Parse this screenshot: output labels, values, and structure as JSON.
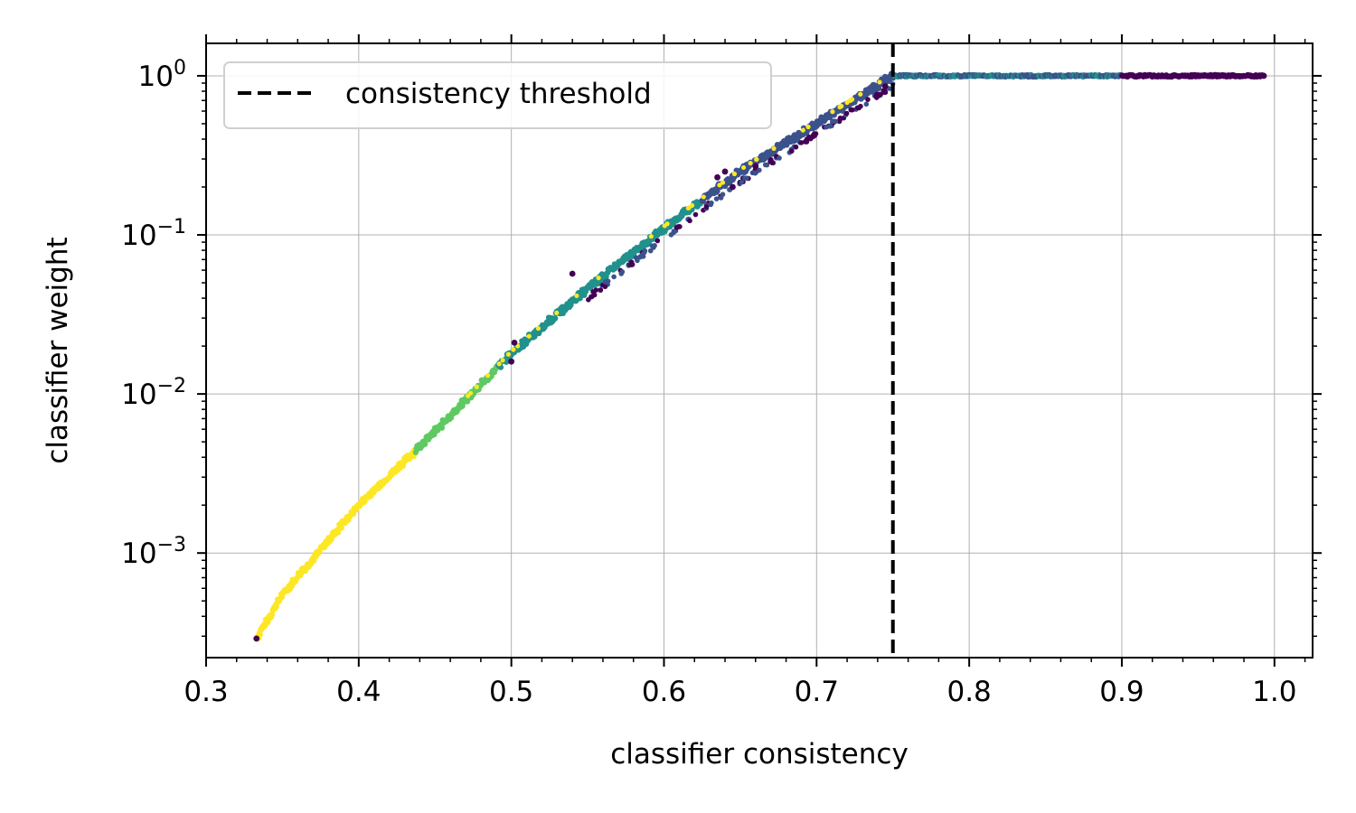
{
  "chart_data": {
    "type": "scatter",
    "title": "",
    "xlabel": "classifier consistency",
    "ylabel": "classifier weight",
    "xlim": [
      0.3,
      1.025
    ],
    "ylim": [
      0.00022,
      1.6
    ],
    "yscale": "log",
    "grid": true,
    "legend_position": "upper-left",
    "x_ticks": [
      {
        "value": 0.3,
        "label": "0.3"
      },
      {
        "value": 0.4,
        "label": "0.4"
      },
      {
        "value": 0.5,
        "label": "0.5"
      },
      {
        "value": 0.6,
        "label": "0.6"
      },
      {
        "value": 0.7,
        "label": "0.7"
      },
      {
        "value": 0.8,
        "label": "0.8"
      },
      {
        "value": 0.9,
        "label": "0.9"
      },
      {
        "value": 1.0,
        "label": "1.0"
      }
    ],
    "y_ticks": [
      {
        "value": 0.001,
        "base": "10",
        "exp": "−3"
      },
      {
        "value": 0.01,
        "base": "10",
        "exp": "−2"
      },
      {
        "value": 0.1,
        "base": "10",
        "exp": "−1"
      },
      {
        "value": 1,
        "base": "10",
        "exp": "0"
      }
    ],
    "threshold": {
      "x": 0.75,
      "label": "consistency threshold",
      "color": "#000000",
      "style": "dashed"
    },
    "colormap": [
      "#440154",
      "#3b528b",
      "#21918c",
      "#5ec962",
      "#fde725"
    ],
    "curve": {
      "description_points": [
        {
          "x": 0.333,
          "y": 0.00029
        },
        {
          "x": 0.35,
          "y": 0.00055
        },
        {
          "x": 0.375,
          "y": 0.00105
        },
        {
          "x": 0.4,
          "y": 0.002
        },
        {
          "x": 0.45,
          "y": 0.0058
        },
        {
          "x": 0.5,
          "y": 0.018
        },
        {
          "x": 0.55,
          "y": 0.046
        },
        {
          "x": 0.6,
          "y": 0.11
        },
        {
          "x": 0.65,
          "y": 0.25
        },
        {
          "x": 0.7,
          "y": 0.5
        },
        {
          "x": 0.75,
          "y": 1.0
        }
      ],
      "plateau": {
        "x_start": 0.75,
        "x_end": 0.993,
        "y": 1.0
      }
    },
    "outliers": [
      {
        "x": 0.333,
        "y": 0.00029
      },
      {
        "x": 0.5,
        "y": 0.016
      },
      {
        "x": 0.502,
        "y": 0.021
      },
      {
        "x": 0.54,
        "y": 0.057
      },
      {
        "x": 0.635,
        "y": 0.23
      },
      {
        "x": 0.64,
        "y": 0.25
      },
      {
        "x": 0.645,
        "y": 0.2
      },
      {
        "x": 0.66,
        "y": 0.27
      },
      {
        "x": 0.67,
        "y": 0.29
      },
      {
        "x": 0.698,
        "y": 0.42
      },
      {
        "x": 0.745,
        "y": 0.86
      },
      {
        "x": 0.993,
        "y": 1.0
      }
    ]
  }
}
